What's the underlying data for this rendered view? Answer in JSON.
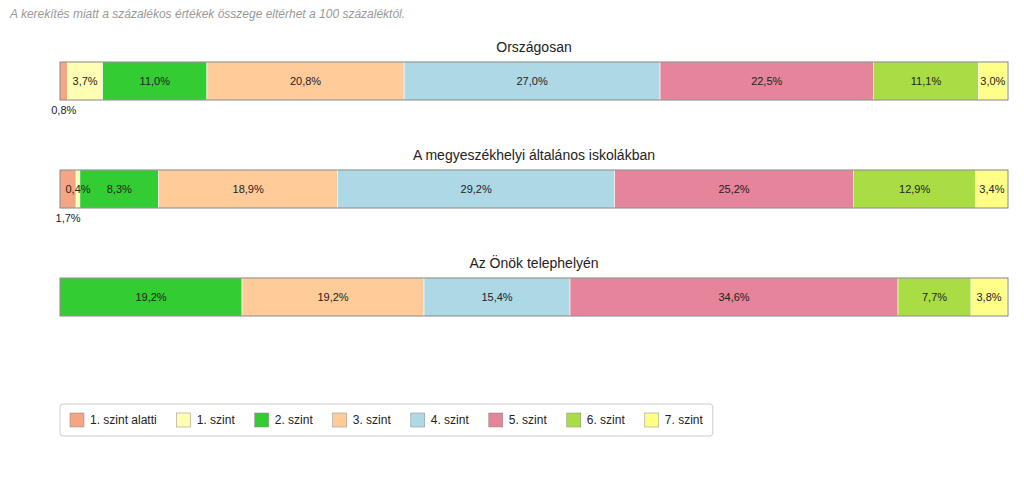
{
  "chart_data": {
    "type": "bar",
    "orientation": "horizontal",
    "stacked": true,
    "subtitle": "A kerekítés miatt a százalékos értékek összege eltérhet a 100 százaléktól.",
    "categories": [
      "Országosan",
      "A megyeszékhelyi általános iskolákban",
      "Az Önök telephelyén"
    ],
    "xlim": [
      0,
      100
    ],
    "tick_labels": false,
    "grid": false,
    "data_labels": true,
    "legend": "bottom",
    "series": [
      {
        "name": "1. szint alatti",
        "color": "#F4A582",
        "values": [
          0.8,
          1.7,
          0.0
        ],
        "value_labels": [
          "0,8%",
          "1,7%",
          null
        ]
      },
      {
        "name": "1. szint",
        "color": "#FFFFB3",
        "values": [
          3.7,
          0.4,
          0.0
        ],
        "value_labels": [
          "3,7%",
          "0,4%",
          null
        ]
      },
      {
        "name": "2. szint",
        "color": "#33CC33",
        "values": [
          11.0,
          8.3,
          19.2
        ],
        "value_labels": [
          "11,0%",
          "8,3%",
          "19,2%"
        ]
      },
      {
        "name": "3. szint",
        "color": "#FFCC99",
        "values": [
          20.8,
          18.9,
          19.2
        ],
        "value_labels": [
          "20,8%",
          "18,9%",
          "19,2%"
        ]
      },
      {
        "name": "4. szint",
        "color": "#ADD8E6",
        "values": [
          27.0,
          29.2,
          15.4
        ],
        "value_labels": [
          "27,0%",
          "29,2%",
          "15,4%"
        ]
      },
      {
        "name": "5. szint",
        "color": "#E5849A",
        "values": [
          22.5,
          25.2,
          34.6
        ],
        "value_labels": [
          "22,5%",
          "25,2%",
          "34,6%"
        ]
      },
      {
        "name": "6. szint",
        "color": "#AADD44",
        "values": [
          11.1,
          12.9,
          7.7
        ],
        "value_labels": [
          "11,1%",
          "12,9%",
          "7,7%"
        ]
      },
      {
        "name": "7. szint",
        "color": "#FFFF88",
        "values": [
          3.0,
          3.4,
          3.8
        ],
        "value_labels": [
          "3,0%",
          "3,4%",
          "3,8%"
        ]
      }
    ]
  }
}
